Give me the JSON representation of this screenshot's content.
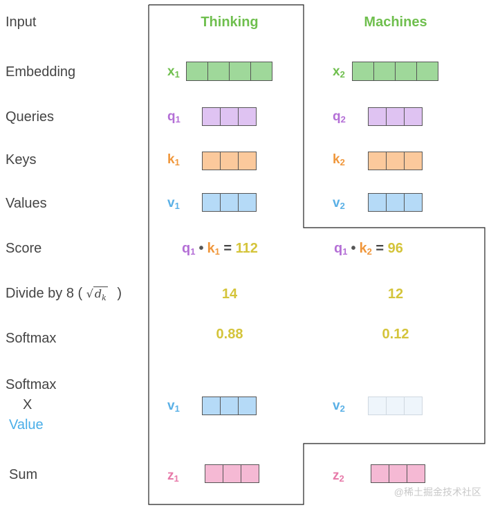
{
  "rows": {
    "input": "Input",
    "embedding": "Embedding",
    "queries": "Queries",
    "keys": "Keys",
    "values": "Values",
    "score": "Score",
    "divide_prefix": "Divide by 8 (",
    "divide_sqrt_var": "d",
    "divide_sqrt_sub": "k",
    "divide_suffix": ")",
    "softmax": "Softmax",
    "softmax_x_value_line1": "Softmax",
    "softmax_x_value_line2": "X",
    "softmax_x_value_line3": "Value",
    "sum": "Sum"
  },
  "columns": [
    {
      "word": "Thinking",
      "embedding": {
        "letter": "x",
        "sub": "1"
      },
      "query": {
        "letter": "q",
        "sub": "1"
      },
      "key": {
        "letter": "k",
        "sub": "1"
      },
      "value": {
        "letter": "v",
        "sub": "1"
      },
      "score": {
        "q": "q",
        "q_sub": "1",
        "k": "k",
        "k_sub": "1",
        "eq": "=",
        "result": "112"
      },
      "divided": "14",
      "softmax": "0.88",
      "weighted_value": {
        "letter": "v",
        "sub": "1"
      },
      "sum": {
        "letter": "z",
        "sub": "1"
      }
    },
    {
      "word": "Machines",
      "embedding": {
        "letter": "x",
        "sub": "2"
      },
      "query": {
        "letter": "q",
        "sub": "2"
      },
      "key": {
        "letter": "k",
        "sub": "2"
      },
      "value": {
        "letter": "v",
        "sub": "2"
      },
      "score": {
        "q": "q",
        "q_sub": "1",
        "k": "k",
        "k_sub": "2",
        "eq": "=",
        "result": "96"
      },
      "divided": "12",
      "softmax": "0.12",
      "weighted_value": {
        "letter": "v",
        "sub": "2"
      },
      "sum": {
        "letter": "z",
        "sub": "2"
      }
    }
  ],
  "score_dot": "•",
  "watermark": "@稀土掘金技术社区",
  "colors": {
    "word": "#6fbf4e",
    "embedding_fill": "#9fd89a",
    "embedding_label": "#6fbf4e",
    "query_fill": "#dfc3f2",
    "query_label": "#b46fd6",
    "key_fill": "#fbc99c",
    "key_label": "#f0973c",
    "value_fill": "#b5daf7",
    "value_label": "#5ab0e6",
    "faded_value_fill": "#eef5fb",
    "faded_value_border": "#cfd8e0",
    "sum_fill": "#f5b9d4",
    "sum_label": "#e77aa9",
    "numbers": "#d4c43a",
    "value_text": "#4aaee8"
  }
}
